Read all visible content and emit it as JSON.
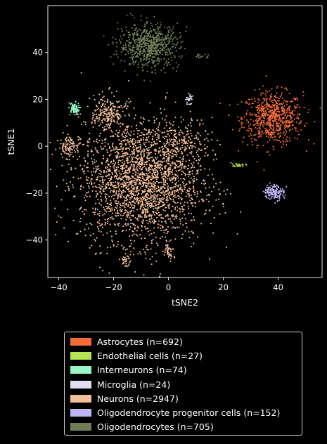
{
  "chart_data": {
    "type": "scatter",
    "xlabel": "tSNE2",
    "ylabel": "tSNE1",
    "xlim": [
      -44,
      56
    ],
    "ylim": [
      -56,
      60
    ],
    "xticks": [
      -40,
      -20,
      0,
      20,
      40
    ],
    "yticks": [
      -40,
      -20,
      0,
      20,
      40
    ],
    "grid": false,
    "legend_position": "bottom-center, below plot",
    "series": [
      {
        "name": "Astrocytes (n=692)",
        "color": "#f26b38",
        "count": 692,
        "clusters": [
          {
            "cx": 38,
            "cy": 12,
            "sx": 5.5,
            "sy": 5.5,
            "n": 692
          }
        ]
      },
      {
        "name": "Endothelial cells (n=27)",
        "color": "#b5e550",
        "count": 27,
        "clusters": [
          {
            "cx": 26,
            "cy": -8,
            "sx": 1.0,
            "sy": 0.4,
            "n": 27
          }
        ]
      },
      {
        "name": "Interneurons (n=74)",
        "color": "#98f5c5",
        "count": 74,
        "clusters": [
          {
            "cx": -34.5,
            "cy": 16,
            "sx": 1.0,
            "sy": 1.3,
            "n": 74
          }
        ]
      },
      {
        "name": "Microglia (n=24)",
        "color": "#e3deef",
        "count": 24,
        "clusters": [
          {
            "cx": 7.5,
            "cy": 20,
            "sx": 0.6,
            "sy": 1.4,
            "n": 24
          }
        ]
      },
      {
        "name": "Neurons (n=2947)",
        "color": "#f4c09a",
        "count": 2947,
        "clusters": [
          {
            "cx": -10,
            "cy": -15,
            "sx": 11,
            "sy": 13,
            "n": 2400
          },
          {
            "cx": -22,
            "cy": 14,
            "sx": 3,
            "sy": 4,
            "n": 200
          },
          {
            "cx": 5,
            "cy": 0,
            "sx": 5,
            "sy": 5,
            "n": 180
          },
          {
            "cx": -15.5,
            "cy": -49,
            "sx": 0.8,
            "sy": 1.0,
            "n": 30
          },
          {
            "cx": 0,
            "cy": -44,
            "sx": 0.9,
            "sy": 2.2,
            "n": 40
          },
          {
            "cx": -36,
            "cy": 0,
            "sx": 2,
            "sy": 2,
            "n": 97
          }
        ]
      },
      {
        "name": "Oligodendrocyte progenitor cells (n=152)",
        "color": "#bdb6f4",
        "count": 152,
        "clusters": [
          {
            "cx": 38.5,
            "cy": -19.5,
            "sx": 1.8,
            "sy": 1.6,
            "n": 152
          }
        ]
      },
      {
        "name": "Oligodendrocytes (n=705)",
        "color": "#6f7d55",
        "count": 705,
        "clusters": [
          {
            "cx": -7,
            "cy": 43,
            "sx": 5.5,
            "sy": 4.5,
            "n": 690
          },
          {
            "cx": 12,
            "cy": 38.5,
            "sx": 1.5,
            "sy": 0.6,
            "n": 15
          }
        ]
      }
    ]
  }
}
